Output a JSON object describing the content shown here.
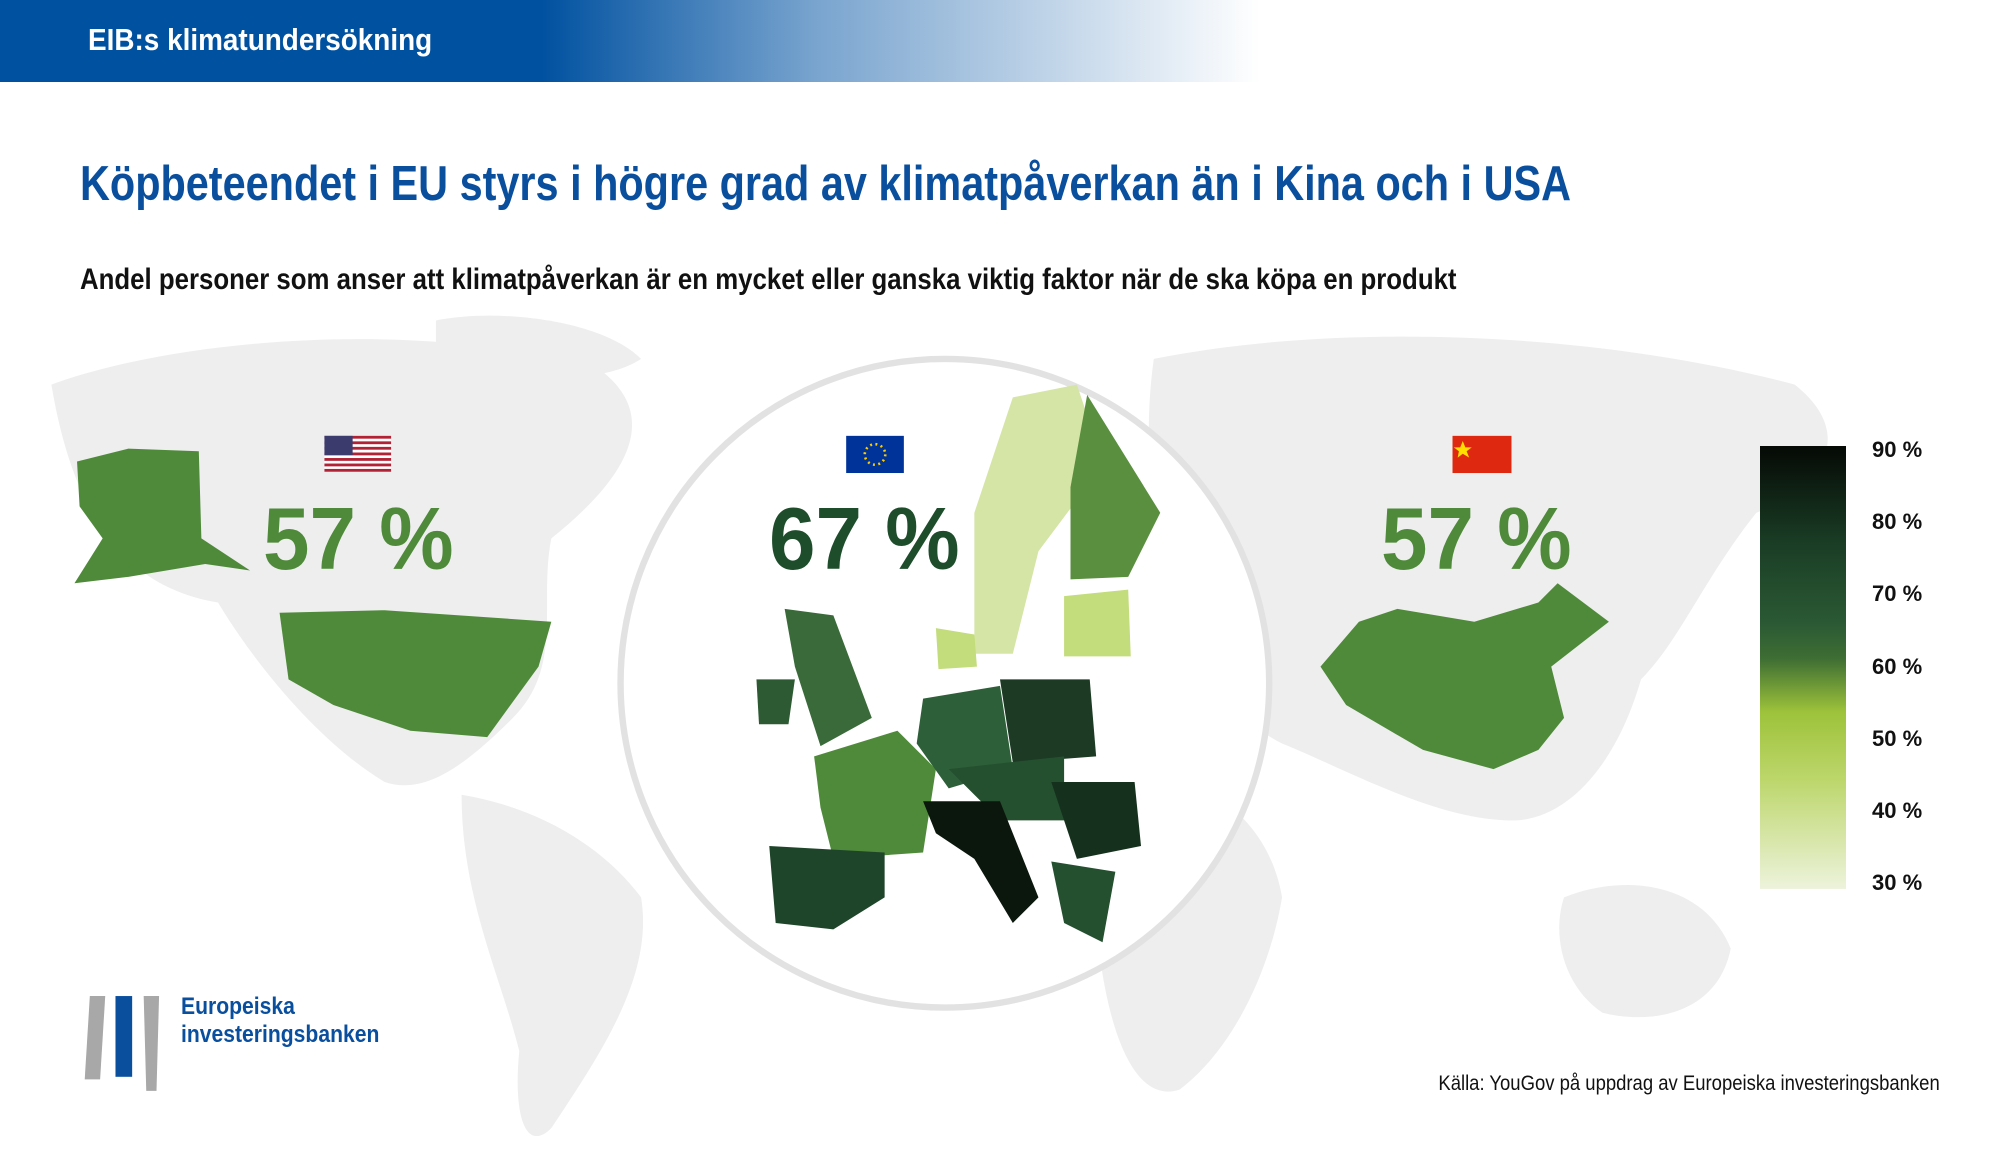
{
  "header": {
    "label": "EIB:s klimatundersökning"
  },
  "title": "Köpbeteendet i EU styrs i högre grad av klimatpåverkan än i Kina och i USA",
  "subtitle": "Andel personer som anser att klimatpåverkan är en mycket eller ganska viktig faktor när de ska köpa en produkt",
  "chart_data": {
    "type": "choropleth",
    "regions": [
      {
        "name": "USA",
        "value": 57,
        "label": "57 %",
        "flag": "us-flag-icon"
      },
      {
        "name": "EU",
        "value": 67,
        "label": "67 %",
        "flag": "eu-flag-icon"
      },
      {
        "name": "Kina",
        "value": 57,
        "label": "57 %",
        "flag": "china-flag-icon"
      }
    ],
    "color_scale": {
      "range": [
        30,
        90
      ],
      "ticks": [
        "90 %",
        "80 %",
        "70 %",
        "60 %",
        "50 %",
        "40 %",
        "30 %"
      ],
      "colors": [
        "#edf3dc",
        "#9dc23a",
        "#2b5934",
        "#050905"
      ]
    }
  },
  "colors": {
    "brand_blue": "#0a4f9e",
    "usa_china_green": "#4f8a3a",
    "eu_number": "#1e4d2b",
    "map_background": "#eeeeee"
  },
  "logo": {
    "line1": "Europeiska",
    "line2": "investeringsbanken"
  },
  "source": "Källa: YouGov på uppdrag av Europeiska investeringsbanken"
}
